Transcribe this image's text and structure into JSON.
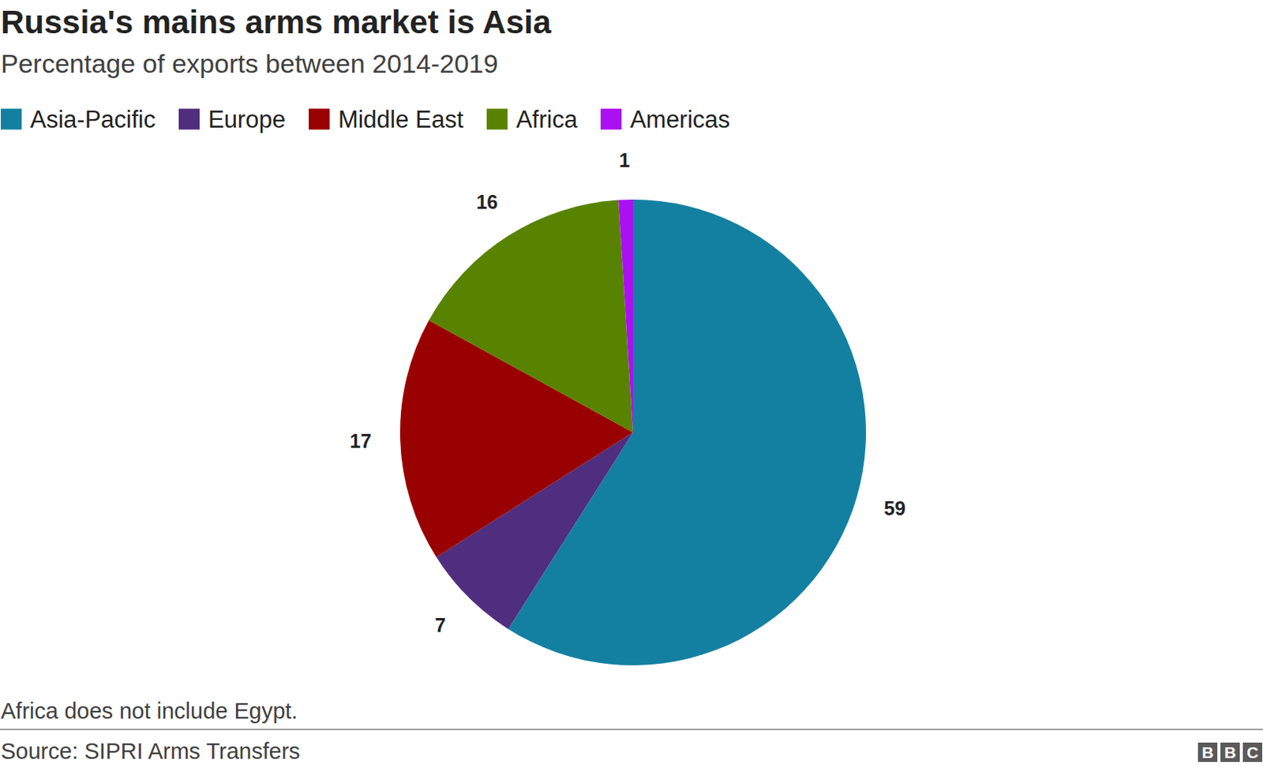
{
  "chart_data": {
    "type": "pie",
    "title": "Russia's mains arms market is Asia",
    "subtitle": "Percentage of exports between 2014-2019",
    "categories": [
      "Asia-Pacific",
      "Europe",
      "Middle East",
      "Africa",
      "Americas"
    ],
    "values": [
      59,
      7,
      17,
      16,
      1
    ],
    "colors": [
      "#1380a1",
      "#4f2d7f",
      "#990000",
      "#588300",
      "#aa10f2"
    ],
    "data_labels": true,
    "legend": "top",
    "note": "Africa does not include Egypt.",
    "source": "Source: SIPRI Arms Transfers",
    "logo": "BBC"
  }
}
